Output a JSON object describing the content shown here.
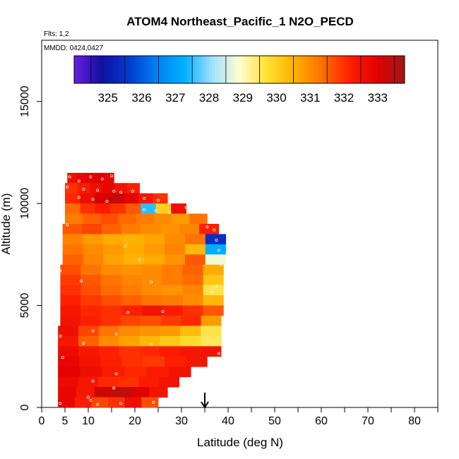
{
  "chart_data": {
    "type": "heatmap",
    "title": "ATOM4 Northeast_Pacific_1 N2O_PECD",
    "flights_text": "Flts: 1,2",
    "mmdd_text": "MMDD: 0424,0427",
    "xlabel": "Latitude (deg N)",
    "ylabel": "Altitude (m)",
    "xlim": [
      0,
      85
    ],
    "ylim": [
      0,
      18000
    ],
    "x_ticks": [
      "0",
      "5",
      "10",
      "20",
      "30",
      "40",
      "50",
      "60",
      "70",
      "80"
    ],
    "x_tick_values": [
      0,
      5,
      10,
      20,
      30,
      40,
      50,
      60,
      70,
      80
    ],
    "y_ticks": [
      "0",
      "5000",
      "10000",
      "15000"
    ],
    "y_tick_values": [
      0,
      5000,
      10000,
      15000
    ],
    "colorbar": {
      "range": [
        324.0,
        333.8
      ],
      "tick_labels": [
        "325",
        "326",
        "327",
        "328",
        "329",
        "330",
        "331",
        "332",
        "333"
      ],
      "tick_values": [
        325,
        326,
        327,
        328,
        329,
        330,
        331,
        332,
        333
      ],
      "colors": [
        "#6a1ee0",
        "#1010a0",
        "#003cd0",
        "#0080f0",
        "#00b0ff",
        "#a0e0ff",
        "#ffffd0",
        "#ffe030",
        "#ffb000",
        "#ff7000",
        "#ff2000",
        "#e00000",
        "#a01818"
      ]
    },
    "marker": {
      "latitude": 35,
      "symbol": "arrow-down"
    },
    "curtain_rows": [
      {
        "alt_lo": 11000,
        "alt_hi": 11500,
        "lat_min": 5.5,
        "lat_max": 15.5,
        "values": [
          332.6,
          332.8,
          332.9,
          333.0,
          332.8
        ]
      },
      {
        "alt_lo": 10500,
        "alt_hi": 11000,
        "lat_min": 5.0,
        "lat_max": 21.0,
        "values": [
          332.0,
          332.3,
          332.6,
          332.8,
          332.5,
          332.2
        ]
      },
      {
        "alt_lo": 10000,
        "alt_hi": 10500,
        "lat_min": 5.0,
        "lat_max": 27.0,
        "values": [
          332.1,
          332.6,
          333.1,
          333.3,
          332.9,
          332.4,
          332.0
        ]
      },
      {
        "alt_lo": 9500,
        "alt_hi": 10000,
        "lat_min": 5.0,
        "lat_max": 31.0,
        "values": [
          331.4,
          332.0,
          332.3,
          332.0,
          331.6,
          327.5,
          330.0,
          332.6
        ]
      },
      {
        "alt_lo": 9000,
        "alt_hi": 9500,
        "lat_min": 5.0,
        "lat_max": 35.5,
        "values": [
          331.2,
          331.5,
          331.7,
          331.4,
          331.2,
          331.0,
          330.8,
          331.3
        ]
      },
      {
        "alt_lo": 8500,
        "alt_hi": 9000,
        "lat_min": 4.5,
        "lat_max": 38.0,
        "values": [
          331.6,
          331.8,
          331.5,
          331.2,
          331.0,
          330.9,
          331.1,
          332.2
        ]
      },
      {
        "alt_lo": 8000,
        "alt_hi": 8500,
        "lat_min": 4.5,
        "lat_max": 39.5,
        "values": [
          331.1,
          330.8,
          330.6,
          330.5,
          330.7,
          331.0,
          331.3,
          325.4
        ]
      },
      {
        "alt_lo": 7500,
        "alt_hi": 8000,
        "lat_min": 4.5,
        "lat_max": 39.5,
        "values": [
          331.3,
          331.0,
          330.8,
          330.6,
          330.8,
          331.1,
          330.4,
          327.2
        ]
      },
      {
        "alt_lo": 7000,
        "alt_hi": 7500,
        "lat_min": 4.5,
        "lat_max": 39.5,
        "values": [
          331.5,
          331.1,
          330.7,
          330.5,
          330.6,
          330.9,
          331.6,
          328.8
        ]
      },
      {
        "alt_lo": 6500,
        "alt_hi": 7000,
        "lat_min": 4.0,
        "lat_max": 39.0,
        "values": [
          331.7,
          331.3,
          331.0,
          330.9,
          331.0,
          331.2,
          331.5,
          330.6
        ]
      },
      {
        "alt_lo": 6000,
        "alt_hi": 6500,
        "lat_min": 4.0,
        "lat_max": 39.0,
        "values": [
          331.9,
          331.6,
          331.3,
          331.1,
          331.0,
          331.2,
          331.4,
          330.2
        ]
      },
      {
        "alt_lo": 5500,
        "alt_hi": 6000,
        "lat_min": 4.0,
        "lat_max": 39.0,
        "values": [
          332.0,
          331.7,
          331.4,
          331.2,
          331.0,
          330.9,
          331.1,
          329.6
        ]
      },
      {
        "alt_lo": 5000,
        "alt_hi": 5500,
        "lat_min": 4.0,
        "lat_max": 39.0,
        "values": [
          332.2,
          331.9,
          331.7,
          331.5,
          331.3,
          331.2,
          331.0,
          330.4
        ]
      },
      {
        "alt_lo": 4500,
        "alt_hi": 5000,
        "lat_min": 4.0,
        "lat_max": 39.0,
        "values": [
          332.4,
          332.1,
          332.0,
          332.2,
          332.5,
          332.3,
          332.0,
          331.6
        ]
      },
      {
        "alt_lo": 4000,
        "alt_hi": 4500,
        "lat_min": 4.0,
        "lat_max": 38.5,
        "values": [
          332.5,
          332.2,
          332.0,
          331.8,
          331.7,
          331.9,
          332.1,
          330.8
        ]
      },
      {
        "alt_lo": 3500,
        "alt_hi": 4000,
        "lat_min": 3.5,
        "lat_max": 38.5,
        "values": [
          332.6,
          331.8,
          331.3,
          331.0,
          330.9,
          330.8,
          330.3,
          329.6
        ]
      },
      {
        "alt_lo": 3000,
        "alt_hi": 3500,
        "lat_min": 3.5,
        "lat_max": 38.5,
        "values": [
          332.4,
          331.5,
          331.0,
          330.7,
          330.4,
          330.1,
          329.8,
          329.5
        ]
      },
      {
        "alt_lo": 2500,
        "alt_hi": 3000,
        "lat_min": 3.5,
        "lat_max": 38.5,
        "values": [
          332.7,
          332.4,
          332.2,
          332.0,
          332.1,
          332.3,
          332.4,
          332.5
        ]
      },
      {
        "alt_lo": 2000,
        "alt_hi": 2500,
        "lat_min": 3.5,
        "lat_max": 35.5,
        "values": [
          332.8,
          332.5,
          332.2,
          332.0,
          331.9,
          332.2,
          332.4
        ]
      },
      {
        "alt_lo": 1500,
        "alt_hi": 2000,
        "lat_min": 3.5,
        "lat_max": 32.0,
        "values": [
          332.9,
          332.6,
          332.3,
          332.1,
          332.3,
          332.5
        ]
      },
      {
        "alt_lo": 1000,
        "alt_hi": 1500,
        "lat_min": 3.5,
        "lat_max": 29.5,
        "values": [
          332.7,
          332.4,
          332.1,
          332.0,
          332.3,
          332.5
        ]
      },
      {
        "alt_lo": 500,
        "alt_hi": 1000,
        "lat_min": 3.5,
        "lat_max": 27.0,
        "values": [
          332.8,
          332.4,
          333.2,
          333.4,
          333.0,
          332.5
        ]
      },
      {
        "alt_lo": 0,
        "alt_hi": 500,
        "lat_min": 3.5,
        "lat_max": 25.0,
        "values": [
          332.8,
          332.3,
          331.8,
          332.0,
          332.6,
          331.7
        ]
      }
    ],
    "samples": [
      {
        "lat": 6,
        "alt": 11300
      },
      {
        "lat": 8,
        "alt": 11100
      },
      {
        "lat": 10.5,
        "alt": 11300
      },
      {
        "lat": 13,
        "alt": 11200
      },
      {
        "lat": 15,
        "alt": 11350
      },
      {
        "lat": 5.5,
        "alt": 10800
      },
      {
        "lat": 9,
        "alt": 10700
      },
      {
        "lat": 12,
        "alt": 10650
      },
      {
        "lat": 15.5,
        "alt": 10600
      },
      {
        "lat": 17,
        "alt": 10550
      },
      {
        "lat": 19.5,
        "alt": 10600
      },
      {
        "lat": 8,
        "alt": 10300
      },
      {
        "lat": 11,
        "alt": 10200
      },
      {
        "lat": 14,
        "alt": 10100
      },
      {
        "lat": 22,
        "alt": 10250
      },
      {
        "lat": 25,
        "alt": 10150
      },
      {
        "lat": 22,
        "alt": 9700
      },
      {
        "lat": 24.5,
        "alt": 9650
      },
      {
        "lat": 27.5,
        "alt": 9550
      },
      {
        "lat": 31,
        "alt": 9800
      },
      {
        "lat": 5.5,
        "alt": 8950
      },
      {
        "lat": 35.5,
        "alt": 8850
      },
      {
        "lat": 37,
        "alt": 8700
      },
      {
        "lat": 37.5,
        "alt": 8200
      },
      {
        "lat": 18,
        "alt": 7900
      },
      {
        "lat": 38,
        "alt": 7700
      },
      {
        "lat": 21,
        "alt": 7250
      },
      {
        "lat": 38.5,
        "alt": 7000
      },
      {
        "lat": 4,
        "alt": 6700
      },
      {
        "lat": 8.5,
        "alt": 6200
      },
      {
        "lat": 23.5,
        "alt": 6150
      },
      {
        "lat": 37.5,
        "alt": 5950
      },
      {
        "lat": 36.5,
        "alt": 5650
      },
      {
        "lat": 18.5,
        "alt": 4650
      },
      {
        "lat": 26,
        "alt": 4700
      },
      {
        "lat": 4,
        "alt": 3500
      },
      {
        "lat": 11,
        "alt": 3750
      },
      {
        "lat": 16,
        "alt": 3600
      },
      {
        "lat": 9,
        "alt": 3150
      },
      {
        "lat": 23.5,
        "alt": 3100
      },
      {
        "lat": 38,
        "alt": 2650
      },
      {
        "lat": 4.5,
        "alt": 2450
      },
      {
        "lat": 16,
        "alt": 1650
      },
      {
        "lat": 11,
        "alt": 1300
      },
      {
        "lat": 15.5,
        "alt": 950
      },
      {
        "lat": 10,
        "alt": 500
      },
      {
        "lat": 10.5,
        "alt": 350
      },
      {
        "lat": 4,
        "alt": 200
      },
      {
        "lat": 12,
        "alt": 150
      },
      {
        "lat": 17,
        "alt": 200
      },
      {
        "lat": 24,
        "alt": 250
      }
    ]
  }
}
